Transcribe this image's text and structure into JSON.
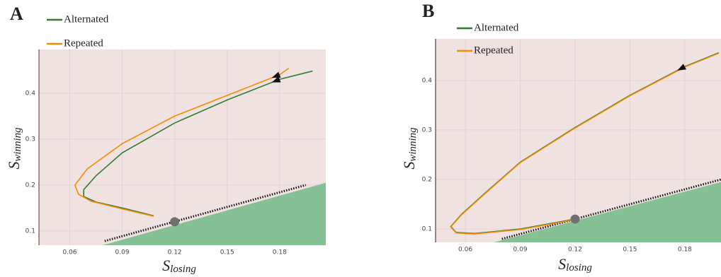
{
  "chart_data": [
    {
      "type": "line",
      "panel": "A",
      "xlabel": {
        "main": "S",
        "sub": "losing"
      },
      "ylabel": {
        "main": "S",
        "sub": "winning"
      },
      "xlim": [
        0.0424,
        0.2064
      ],
      "ylim": [
        0.069,
        0.495
      ],
      "xticks": [
        0.06,
        0.09,
        0.12,
        0.15,
        0.18
      ],
      "yticks": [
        0.1,
        0.2,
        0.3,
        0.4
      ],
      "grid": true,
      "series": [
        {
          "name": "Alternated",
          "color": "#2e7d32",
          "x": [
            0.1988,
            0.18,
            0.15,
            0.12,
            0.09,
            0.075,
            0.068,
            0.068,
            0.075,
            0.09,
            0.108
          ],
          "values": [
            0.448,
            0.43,
            0.385,
            0.335,
            0.27,
            0.22,
            0.19,
            0.175,
            0.163,
            0.15,
            0.133
          ]
        },
        {
          "name": "Repeated",
          "color": "#f28c00",
          "x": [
            0.1852,
            0.18,
            0.15,
            0.12,
            0.09,
            0.07,
            0.063,
            0.065,
            0.072,
            0.09,
            0.108
          ],
          "values": [
            0.454,
            0.44,
            0.395,
            0.35,
            0.29,
            0.235,
            0.2,
            0.18,
            0.165,
            0.148,
            0.132
          ]
        }
      ],
      "region": {
        "color": "#86c196",
        "x": [
          0.0788,
          0.2064,
          0.2064
        ],
        "y": [
          0.069,
          0.205,
          0.069
        ]
      },
      "boundary": {
        "x": [
          0.08,
          0.195
        ],
        "y": [
          0.078,
          0.2
        ]
      },
      "point": {
        "x": 0.12,
        "y": 0.12,
        "color": "#707070"
      }
    },
    {
      "type": "line",
      "panel": "B",
      "xlabel": {
        "main": "S",
        "sub": "losing"
      },
      "ylabel": {
        "main": "S",
        "sub": "winning"
      },
      "xlim": [
        0.0437,
        0.1998
      ],
      "ylim": [
        0.073,
        0.484
      ],
      "xticks": [
        0.06,
        0.09,
        0.12,
        0.15,
        0.18
      ],
      "yticks": [
        0.1,
        0.2,
        0.3,
        0.4
      ],
      "grid": true,
      "series": [
        {
          "name": "Alternated",
          "color": "#2e7d32",
          "x": [
            0.1986,
            0.18,
            0.15,
            0.12,
            0.09,
            0.07,
            0.058,
            0.052,
            0.055,
            0.065,
            0.09,
            0.12
          ],
          "values": [
            0.456,
            0.428,
            0.37,
            0.305,
            0.235,
            0.17,
            0.13,
            0.105,
            0.093,
            0.091,
            0.1,
            0.12
          ]
        },
        {
          "name": "Repeated",
          "color": "#f28c00",
          "x": [
            0.1986,
            0.18,
            0.15,
            0.12,
            0.09,
            0.07,
            0.058,
            0.052,
            0.055,
            0.065,
            0.09,
            0.12
          ],
          "values": [
            0.455,
            0.427,
            0.369,
            0.304,
            0.234,
            0.169,
            0.129,
            0.104,
            0.092,
            0.09,
            0.099,
            0.119
          ]
        }
      ],
      "region": {
        "color": "#86c196",
        "x": [
          0.0755,
          0.1998,
          0.1998
        ],
        "y": [
          0.073,
          0.195,
          0.073
        ]
      },
      "boundary": {
        "x": [
          0.08,
          0.1998
        ],
        "y": [
          0.08,
          0.2
        ]
      },
      "point": {
        "x": 0.12,
        "y": 0.12,
        "color": "#707070"
      }
    }
  ]
}
